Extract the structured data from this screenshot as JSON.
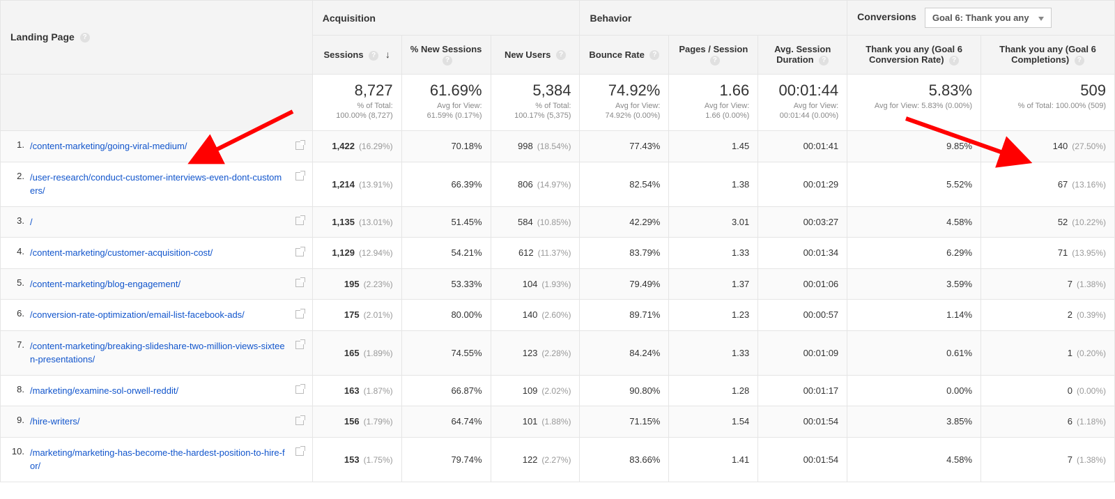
{
  "headers": {
    "dimension": "Landing Page",
    "groups": {
      "acquisition": "Acquisition",
      "behavior": "Behavior",
      "conversions": "Conversions"
    },
    "goal_selector": "Goal 6: Thank you any",
    "columns": {
      "sessions": "Sessions",
      "new_sessions_pct": "% New Sessions",
      "new_users": "New Users",
      "bounce_rate": "Bounce Rate",
      "pages_per_session": "Pages / Session",
      "avg_duration": "Avg. Session Duration",
      "conversion_rate": "Thank you any (Goal 6 Conversion Rate)",
      "completions": "Thank you any (Goal 6 Completions)"
    }
  },
  "summary": {
    "sessions": {
      "big": "8,727",
      "sub1": "% of Total:",
      "sub2": "100.00% (8,727)"
    },
    "new_sessions_pct": {
      "big": "61.69%",
      "sub1": "Avg for View:",
      "sub2": "61.59% (0.17%)"
    },
    "new_users": {
      "big": "5,384",
      "sub1": "% of Total:",
      "sub2": "100.17% (5,375)"
    },
    "bounce_rate": {
      "big": "74.92%",
      "sub1": "Avg for View:",
      "sub2": "74.92% (0.00%)"
    },
    "pages_per_session": {
      "big": "1.66",
      "sub1": "Avg for View:",
      "sub2": "1.66 (0.00%)"
    },
    "avg_duration": {
      "big": "00:01:44",
      "sub1": "Avg for View:",
      "sub2": "00:01:44 (0.00%)"
    },
    "conversion_rate": {
      "big": "5.83%",
      "sub1": "Avg for View: 5.83% (0.00%)",
      "sub2": ""
    },
    "completions": {
      "big": "509",
      "sub1": "% of Total: 100.00% (509)",
      "sub2": ""
    }
  },
  "rows": [
    {
      "idx": "1.",
      "page": "/content-marketing/going-viral-medium/",
      "sessions": "1,422",
      "sessions_pct": "(16.29%)",
      "new_sessions_pct": "70.18%",
      "new_users": "998",
      "new_users_pct": "(18.54%)",
      "bounce_rate": "77.43%",
      "pages_per_session": "1.45",
      "avg_duration": "00:01:41",
      "conversion_rate": "9.85%",
      "completions": "140",
      "completions_pct": "(27.50%)"
    },
    {
      "idx": "2.",
      "page": "/user-research/conduct-customer-interviews-even-dont-customers/",
      "sessions": "1,214",
      "sessions_pct": "(13.91%)",
      "new_sessions_pct": "66.39%",
      "new_users": "806",
      "new_users_pct": "(14.97%)",
      "bounce_rate": "82.54%",
      "pages_per_session": "1.38",
      "avg_duration": "00:01:29",
      "conversion_rate": "5.52%",
      "completions": "67",
      "completions_pct": "(13.16%)"
    },
    {
      "idx": "3.",
      "page": "/",
      "sessions": "1,135",
      "sessions_pct": "(13.01%)",
      "new_sessions_pct": "51.45%",
      "new_users": "584",
      "new_users_pct": "(10.85%)",
      "bounce_rate": "42.29%",
      "pages_per_session": "3.01",
      "avg_duration": "00:03:27",
      "conversion_rate": "4.58%",
      "completions": "52",
      "completions_pct": "(10.22%)"
    },
    {
      "idx": "4.",
      "page": "/content-marketing/customer-acquisition-cost/",
      "sessions": "1,129",
      "sessions_pct": "(12.94%)",
      "new_sessions_pct": "54.21%",
      "new_users": "612",
      "new_users_pct": "(11.37%)",
      "bounce_rate": "83.79%",
      "pages_per_session": "1.33",
      "avg_duration": "00:01:34",
      "conversion_rate": "6.29%",
      "completions": "71",
      "completions_pct": "(13.95%)"
    },
    {
      "idx": "5.",
      "page": "/content-marketing/blog-engagement/",
      "sessions": "195",
      "sessions_pct": "(2.23%)",
      "new_sessions_pct": "53.33%",
      "new_users": "104",
      "new_users_pct": "(1.93%)",
      "bounce_rate": "79.49%",
      "pages_per_session": "1.37",
      "avg_duration": "00:01:06",
      "conversion_rate": "3.59%",
      "completions": "7",
      "completions_pct": "(1.38%)"
    },
    {
      "idx": "6.",
      "page": "/conversion-rate-optimization/email-list-facebook-ads/",
      "sessions": "175",
      "sessions_pct": "(2.01%)",
      "new_sessions_pct": "80.00%",
      "new_users": "140",
      "new_users_pct": "(2.60%)",
      "bounce_rate": "89.71%",
      "pages_per_session": "1.23",
      "avg_duration": "00:00:57",
      "conversion_rate": "1.14%",
      "completions": "2",
      "completions_pct": "(0.39%)"
    },
    {
      "idx": "7.",
      "page": "/content-marketing/breaking-slideshare-two-million-views-sixteen-presentations/",
      "sessions": "165",
      "sessions_pct": "(1.89%)",
      "new_sessions_pct": "74.55%",
      "new_users": "123",
      "new_users_pct": "(2.28%)",
      "bounce_rate": "84.24%",
      "pages_per_session": "1.33",
      "avg_duration": "00:01:09",
      "conversion_rate": "0.61%",
      "completions": "1",
      "completions_pct": "(0.20%)"
    },
    {
      "idx": "8.",
      "page": "/marketing/examine-sol-orwell-reddit/",
      "sessions": "163",
      "sessions_pct": "(1.87%)",
      "new_sessions_pct": "66.87%",
      "new_users": "109",
      "new_users_pct": "(2.02%)",
      "bounce_rate": "90.80%",
      "pages_per_session": "1.28",
      "avg_duration": "00:01:17",
      "conversion_rate": "0.00%",
      "completions": "0",
      "completions_pct": "(0.00%)"
    },
    {
      "idx": "9.",
      "page": "/hire-writers/",
      "sessions": "156",
      "sessions_pct": "(1.79%)",
      "new_sessions_pct": "64.74%",
      "new_users": "101",
      "new_users_pct": "(1.88%)",
      "bounce_rate": "71.15%",
      "pages_per_session": "1.54",
      "avg_duration": "00:01:54",
      "conversion_rate": "3.85%",
      "completions": "6",
      "completions_pct": "(1.18%)"
    },
    {
      "idx": "10.",
      "page": "/marketing/marketing-has-become-the-hardest-position-to-hire-for/",
      "sessions": "153",
      "sessions_pct": "(1.75%)",
      "new_sessions_pct": "79.74%",
      "new_users": "122",
      "new_users_pct": "(2.27%)",
      "bounce_rate": "83.66%",
      "pages_per_session": "1.41",
      "avg_duration": "00:01:54",
      "conversion_rate": "4.58%",
      "completions": "7",
      "completions_pct": "(1.38%)"
    }
  ],
  "annotation": {
    "arrow_color": "#ff0000",
    "arrow_stroke": 6
  }
}
